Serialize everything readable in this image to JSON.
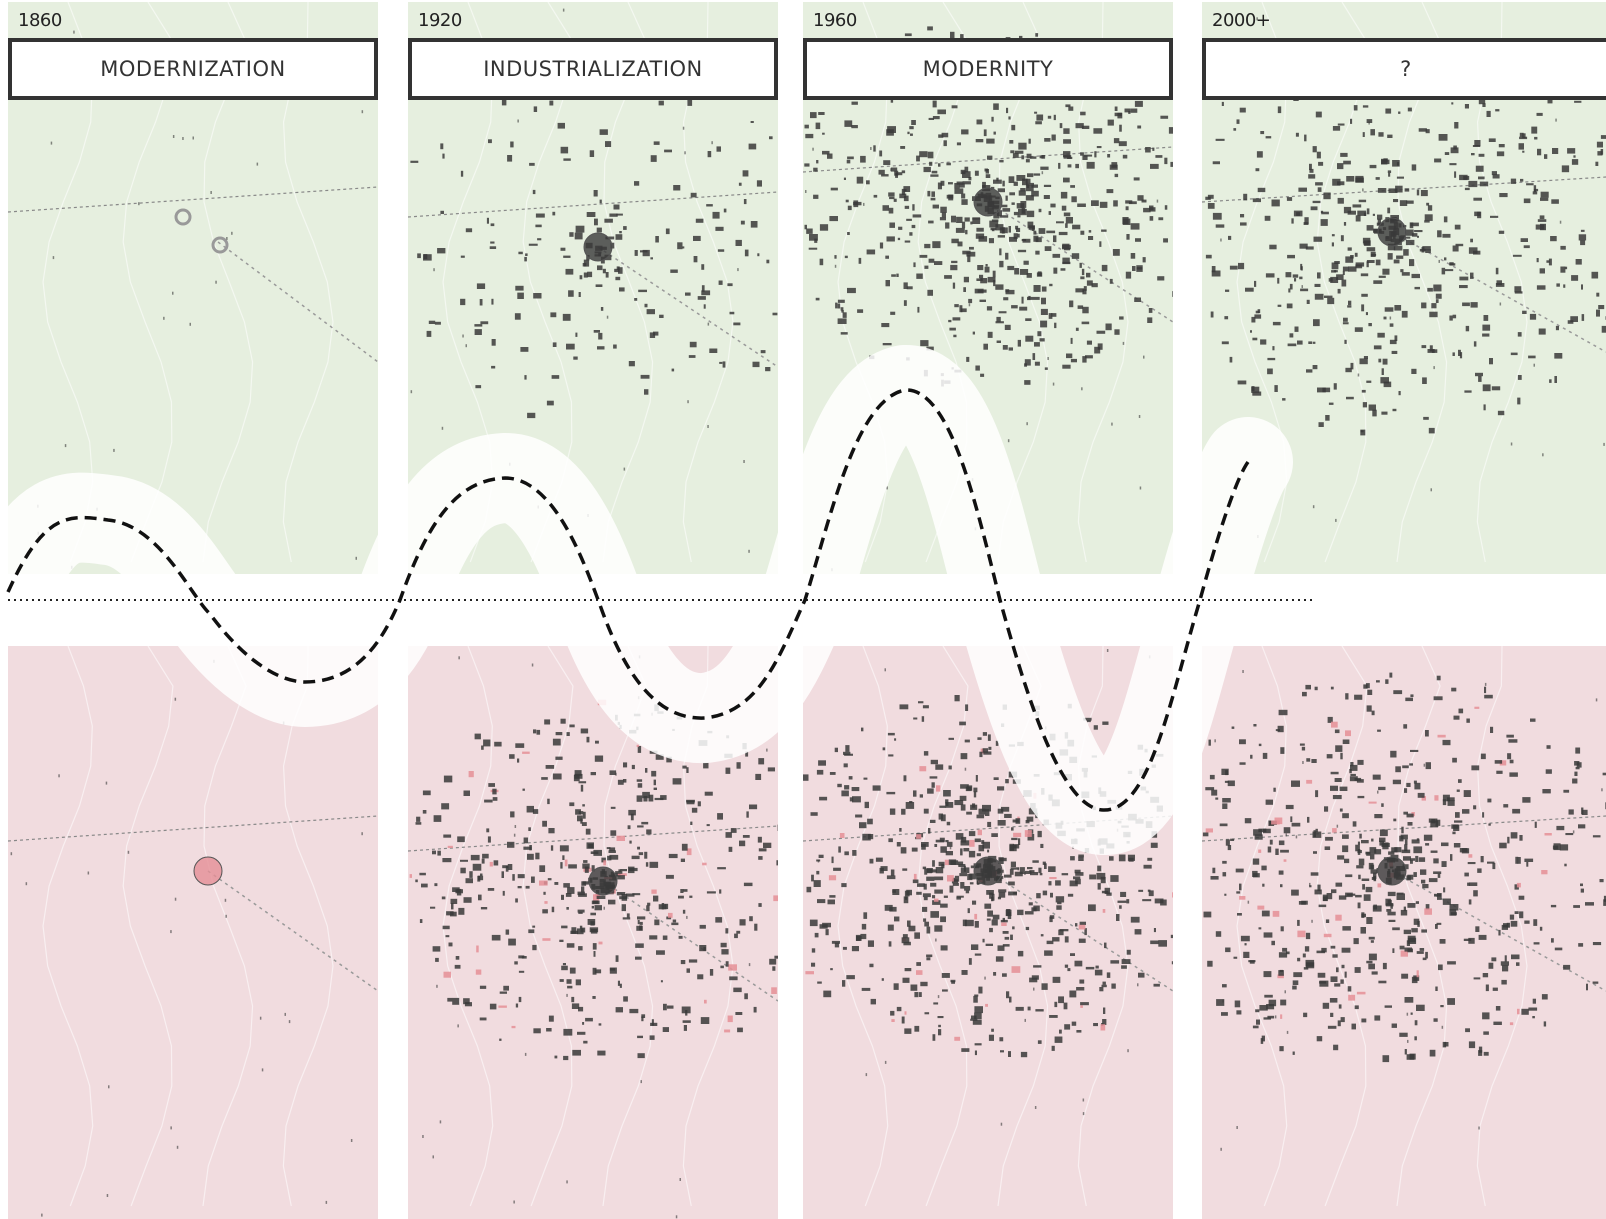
{
  "periods": [
    {
      "year": "1860",
      "label": "MODERNIZATION",
      "density": 0.0
    },
    {
      "year": "1920",
      "label": "INDUSTRIALIZATION",
      "density": 0.35
    },
    {
      "year": "1960",
      "label": "MODERNITY",
      "density": 0.75
    },
    {
      "year": "2000+",
      "label": "?",
      "density": 0.85
    }
  ],
  "colors": {
    "green_panel": "#e6efdf",
    "pink_panel": "#f1dcdf",
    "building": "#3a3a3a",
    "highlight": "#e58f96",
    "wave": "#111111",
    "halo": "#ffffff"
  }
}
